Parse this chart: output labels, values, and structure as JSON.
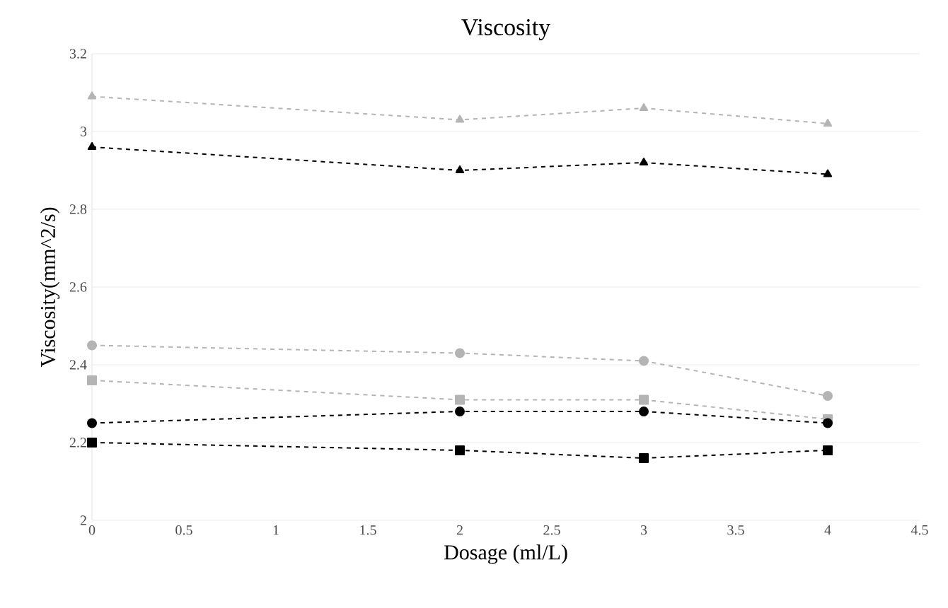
{
  "chart_data": {
    "type": "line",
    "title": "Viscosity",
    "xlabel": "Dosage (ml/L)",
    "ylabel": "Viscosity(mm^2/s)",
    "x": [
      0,
      2,
      3,
      4
    ],
    "series": [
      {
        "color": "#b4b4b4",
        "values": [
          3.09,
          3.03,
          3.06,
          3.02
        ],
        "marker": "triangle"
      },
      {
        "color": "#000000",
        "values": [
          2.96,
          2.9,
          2.92,
          2.89
        ],
        "marker": "triangle"
      },
      {
        "color": "#b4b4b4",
        "values": [
          2.45,
          2.43,
          2.41,
          2.32
        ],
        "marker": "circle"
      },
      {
        "color": "#b4b4b4",
        "values": [
          2.36,
          2.31,
          2.31,
          2.26
        ],
        "marker": "square"
      },
      {
        "color": "#000000",
        "values": [
          2.25,
          2.28,
          2.28,
          2.25
        ],
        "marker": "circle"
      },
      {
        "color": "#000000",
        "values": [
          2.2,
          2.18,
          2.16,
          2.18
        ],
        "marker": "square"
      }
    ],
    "xlim": [
      0,
      4.5
    ],
    "xticks": [
      0,
      0.5,
      1,
      1.5,
      2,
      2.5,
      3,
      3.5,
      4,
      4.5
    ],
    "ylim": [
      2,
      3.2
    ],
    "yticks": [
      2,
      2.2,
      2.4,
      2.6,
      2.8,
      3,
      3.2
    ],
    "grid": "y",
    "line_style": "dashed"
  }
}
